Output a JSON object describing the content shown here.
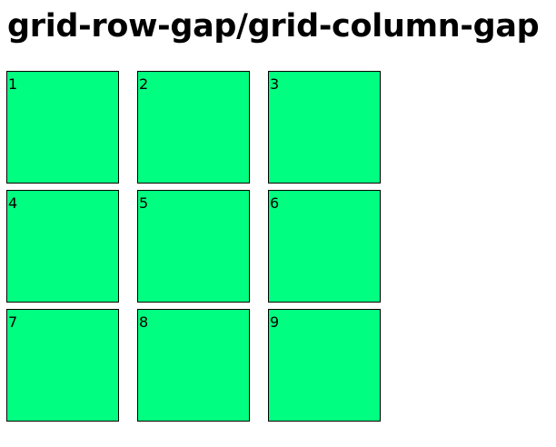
{
  "header": {
    "title": "grid-row-gap/grid-column-gap"
  },
  "grid": {
    "cell_color": "#00ff80",
    "border_color": "#000000",
    "items": [
      {
        "label": "1"
      },
      {
        "label": "2"
      },
      {
        "label": "3"
      },
      {
        "label": "4"
      },
      {
        "label": "5"
      },
      {
        "label": "6"
      },
      {
        "label": "7"
      },
      {
        "label": "8"
      },
      {
        "label": "9"
      }
    ]
  }
}
